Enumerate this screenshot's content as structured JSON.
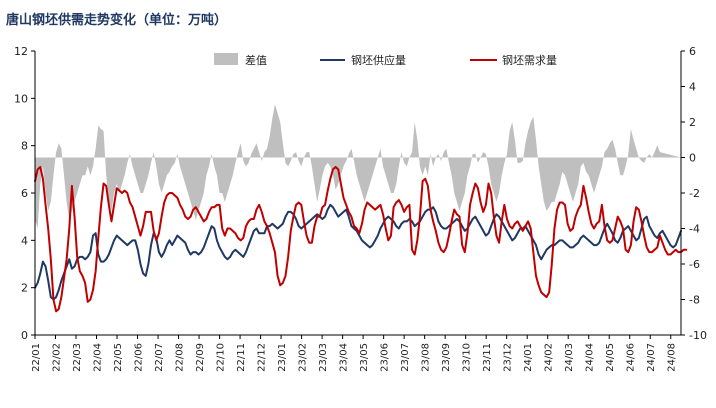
{
  "chart_data": {
    "type": "line",
    "title": "唐山钢坯供需走势变化（单位：万吨）",
    "left_axis": {
      "range": [
        0,
        12
      ],
      "ticks": [
        "0",
        "2",
        "4",
        "6",
        "8",
        "10",
        "12"
      ]
    },
    "right_axis": {
      "range": [
        -10,
        6
      ],
      "ticks": [
        "-10",
        "-8",
        "-6",
        "-4",
        "-2",
        "0",
        "2",
        "4",
        "6"
      ]
    },
    "x_tick_labels": [
      "22/01",
      "22/02",
      "22/03",
      "22/04",
      "22/05",
      "22/06",
      "22/07",
      "22/08",
      "22/09",
      "22/10",
      "22/11",
      "22/12",
      "23/01",
      "23/02",
      "23/03",
      "23/04",
      "23/05",
      "23/06",
      "23/07",
      "23/08",
      "23/09",
      "23/10",
      "23/11",
      "23/12",
      "24/01",
      "24/02",
      "24/03",
      "24/04",
      "24/05",
      "24/06",
      "24/07",
      "24/08"
    ],
    "legend_position": "top",
    "series": [
      {
        "name": "差值",
        "type": "area",
        "axis": "right",
        "color": "#bfbfbf",
        "values": [
          -3.5,
          -4.0,
          -1.5,
          -0.5,
          -2.0,
          -3.0,
          -2.5,
          -1.0,
          0.3,
          0.8,
          0.5,
          -1.0,
          -2.5,
          -3.5,
          -3.0,
          -2.5,
          -2.0,
          -1.5,
          -1.0,
          -1.0,
          -0.5,
          -1.0,
          -0.5,
          0.5,
          1.8,
          1.6,
          1.5,
          -1.0,
          -2.5,
          -3.0,
          -2.0,
          -1.5,
          -2.0,
          -1.5,
          -1.0,
          -0.3,
          0.2,
          -0.5,
          -1.0,
          -1.5,
          -2.0,
          -2.0,
          -1.5,
          -1.0,
          -0.3,
          0.3,
          -0.5,
          -1.5,
          -2.0,
          -1.5,
          -1.0,
          -0.8,
          -0.5,
          -0.3,
          0.2,
          -0.5,
          -1.0,
          -1.5,
          -2.0,
          -2.5,
          -3.0,
          -3.5,
          -3.0,
          -2.5,
          -2.0,
          -1.0,
          -0.5,
          0.2,
          -0.5,
          -1.0,
          -2.0,
          -2.0,
          -2.5,
          -2.0,
          -1.5,
          -1.0,
          -0.3,
          0.3,
          0.8,
          -0.2,
          -0.5,
          -0.3,
          0.2,
          0.5,
          0.8,
          0.3,
          -0.2,
          0.3,
          0.5,
          1.2,
          2.2,
          3.0,
          2.5,
          2.0,
          0.8,
          -0.3,
          -0.5,
          -0.2,
          0.2,
          0.3,
          -0.2,
          -0.5,
          0.0,
          0.3,
          0.3,
          -0.5,
          -1.5,
          -2.5,
          -1.8,
          -1.0,
          -0.5,
          -0.3,
          -0.5,
          -1.0,
          -1.8,
          -1.5,
          -1.0,
          -0.5,
          -0.2,
          0.2,
          0.5,
          -0.2,
          -1.0,
          -1.5,
          -2.0,
          -2.5,
          -2.0,
          -1.5,
          -1.0,
          -0.5,
          0.0,
          0.5,
          -0.5,
          -1.0,
          -1.5,
          -2.0,
          -2.0,
          -1.5,
          -0.5,
          0.3,
          -0.3,
          -0.5,
          0.0,
          0.3,
          2.0,
          1.0,
          -0.5,
          -1.0,
          -0.5,
          -1.0,
          0.2,
          -0.5,
          0.0,
          0.2,
          -0.2,
          0.3,
          0.5,
          -0.3,
          -1.0,
          -2.0,
          -2.5,
          -3.0,
          -2.5,
          -2.0,
          -1.0,
          -0.5,
          0.2,
          0.2,
          -0.3,
          0.0,
          0.3,
          0.2,
          -0.5,
          -1.5,
          -2.0,
          -2.5,
          -2.0,
          -1.0,
          -0.3,
          0.2,
          1.5,
          2.0,
          1.0,
          -0.3,
          -0.3,
          -0.2,
          0.8,
          1.5,
          2.0,
          2.3,
          1.0,
          -0.5,
          -1.5,
          -2.5,
          -3.0,
          -2.8,
          -2.5,
          -2.5,
          -2.0,
          -1.5,
          -0.8,
          -1.0,
          -1.5,
          -2.0,
          -2.5,
          -2.0,
          -1.5,
          -0.5,
          -0.3,
          -0.8,
          -1.0,
          -1.5,
          -2.0,
          -1.5,
          -1.0,
          -0.5,
          0.3,
          0.5,
          0.8,
          1.0,
          0.5,
          -0.3,
          -1.0,
          -1.0,
          -0.5,
          0.2,
          1.6,
          1.0,
          0.5,
          0.0,
          -0.2,
          -0.3,
          0.0,
          0.2,
          0.0,
          0.3,
          0.7,
          0.3
        ]
      },
      {
        "name": "钢坯供应量",
        "type": "line",
        "axis": "left",
        "color": "#1f3864",
        "values": [
          2.0,
          2.2,
          2.6,
          3.1,
          2.9,
          2.3,
          1.6,
          1.5,
          1.6,
          1.9,
          2.3,
          2.6,
          2.9,
          3.2,
          2.8,
          2.9,
          3.2,
          3.3,
          3.3,
          3.2,
          3.3,
          3.5,
          4.2,
          4.3,
          3.4,
          3.1,
          3.1,
          3.2,
          3.4,
          3.7,
          4.0,
          4.2,
          4.1,
          4.0,
          3.9,
          3.8,
          3.9,
          4.0,
          4.0,
          3.6,
          3.0,
          2.6,
          2.5,
          3.0,
          3.8,
          4.3,
          4.1,
          3.5,
          3.3,
          3.5,
          3.8,
          4.0,
          3.8,
          4.0,
          4.2,
          4.1,
          4.0,
          3.9,
          3.6,
          3.4,
          3.5,
          3.5,
          3.4,
          3.5,
          3.7,
          4.0,
          4.3,
          4.6,
          4.5,
          4.0,
          3.7,
          3.5,
          3.3,
          3.2,
          3.3,
          3.5,
          3.6,
          3.5,
          3.4,
          3.3,
          3.5,
          3.8,
          4.1,
          4.4,
          4.5,
          4.3,
          4.3,
          4.3,
          4.6,
          4.6,
          4.7,
          4.6,
          4.5,
          4.6,
          4.7,
          5.0,
          5.2,
          5.2,
          5.1,
          4.9,
          4.6,
          4.5,
          4.6,
          4.7,
          4.8,
          4.9,
          5.0,
          5.1,
          5.0,
          4.9,
          5.0,
          5.3,
          5.5,
          5.4,
          5.2,
          5.0,
          5.1,
          5.2,
          5.3,
          5.0,
          4.6,
          4.5,
          4.4,
          4.2,
          4.0,
          3.9,
          3.8,
          3.7,
          3.8,
          4.0,
          4.2,
          4.5,
          4.7,
          4.9,
          5.0,
          4.9,
          4.8,
          4.6,
          4.5,
          4.7,
          4.8,
          4.8,
          4.9,
          4.8,
          4.6,
          4.7,
          4.8,
          5.0,
          5.2,
          5.3,
          5.3,
          5.4,
          5.2,
          4.8,
          4.6,
          4.5,
          4.5,
          4.6,
          4.7,
          4.8,
          4.9,
          4.8,
          4.6,
          4.4,
          4.5,
          4.7,
          4.9,
          5.0,
          4.8,
          4.6,
          4.4,
          4.2,
          4.3,
          4.6,
          4.9,
          5.1,
          5.0,
          4.8,
          4.6,
          4.4,
          4.2,
          4.0,
          4.1,
          4.3,
          4.5,
          4.5,
          4.6,
          4.4,
          4.2,
          4.0,
          3.8,
          3.4,
          3.2,
          3.4,
          3.6,
          3.7,
          3.8,
          3.8,
          3.9,
          4.0,
          4.0,
          3.9,
          3.8,
          3.7,
          3.7,
          3.8,
          3.9,
          4.1,
          4.2,
          4.1,
          4.0,
          3.9,
          3.8,
          3.8,
          3.9,
          4.2,
          4.5,
          4.7,
          4.5,
          4.3,
          4.0,
          3.9,
          4.1,
          4.4,
          4.5,
          4.6,
          4.4,
          4.2,
          4.0,
          4.1,
          4.5,
          4.9,
          5.0,
          4.6,
          4.4,
          4.2,
          4.1,
          4.3,
          4.4,
          4.2,
          4.0,
          3.8,
          3.7,
          3.8,
          4.1,
          4.4
        ]
      },
      {
        "name": "钢坯需求量",
        "type": "line",
        "axis": "left",
        "color": "#c00000",
        "values": [
          6.5,
          7.0,
          7.1,
          6.6,
          5.5,
          4.5,
          3.2,
          1.5,
          1.0,
          1.1,
          1.6,
          2.4,
          3.2,
          4.5,
          6.3,
          5.0,
          3.3,
          2.7,
          2.5,
          2.2,
          1.4,
          1.5,
          1.9,
          2.7,
          4.1,
          5.4,
          6.4,
          6.3,
          5.5,
          4.8,
          5.5,
          6.2,
          6.1,
          6.0,
          6.1,
          6.0,
          5.6,
          5.4,
          5.0,
          4.6,
          4.2,
          4.6,
          5.2,
          5.2,
          5.2,
          4.4,
          4.0,
          4.3,
          5.0,
          5.6,
          5.9,
          6.0,
          6.0,
          5.9,
          5.8,
          5.5,
          5.3,
          5.0,
          4.9,
          5.0,
          5.3,
          5.4,
          5.2,
          5.0,
          4.8,
          4.9,
          5.2,
          5.4,
          5.4,
          5.5,
          5.5,
          4.5,
          4.2,
          4.5,
          4.5,
          4.4,
          4.3,
          4.1,
          4.0,
          4.1,
          4.6,
          4.8,
          4.9,
          4.9,
          5.3,
          5.5,
          5.2,
          4.8,
          4.6,
          4.3,
          3.9,
          3.5,
          2.5,
          2.1,
          2.2,
          2.5,
          3.3,
          4.4,
          5.0,
          5.5,
          5.6,
          5.5,
          4.8,
          4.2,
          3.9,
          3.9,
          4.6,
          5.0,
          5.0,
          5.4,
          5.5,
          6.1,
          6.6,
          7.0,
          7.1,
          7.0,
          6.4,
          5.8,
          5.5,
          5.2,
          5.0,
          4.6,
          4.5,
          4.3,
          4.7,
          5.3,
          5.6,
          5.5,
          5.4,
          5.3,
          5.4,
          5.5,
          5.1,
          4.5,
          4.0,
          4.2,
          5.4,
          5.6,
          5.7,
          5.5,
          5.2,
          5.4,
          5.5,
          3.6,
          3.4,
          4.0,
          5.0,
          6.5,
          6.6,
          6.3,
          5.3,
          4.8,
          4.4,
          3.9,
          3.6,
          3.5,
          3.7,
          4.2,
          4.8,
          5.3,
          5.1,
          5.0,
          3.8,
          3.5,
          4.3,
          5.5,
          6.0,
          6.4,
          6.2,
          5.6,
          5.2,
          5.5,
          6.4,
          6.0,
          5.0,
          4.2,
          3.9,
          4.8,
          5.5,
          4.9,
          4.6,
          4.5,
          4.7,
          4.8,
          4.6,
          4.4,
          4.6,
          4.8,
          4.5,
          3.5,
          2.5,
          2.1,
          1.8,
          1.7,
          1.6,
          1.8,
          3.0,
          4.5,
          5.3,
          5.6,
          5.6,
          5.5,
          4.7,
          4.4,
          4.5,
          5.0,
          5.3,
          5.5,
          6.3,
          5.8,
          5.2,
          4.7,
          4.5,
          4.7,
          4.8,
          5.5,
          4.6,
          4.0,
          3.9,
          4.0,
          4.5,
          5.0,
          4.8,
          4.5,
          3.6,
          3.5,
          3.8,
          4.8,
          5.4,
          5.3,
          4.8,
          4.2,
          3.7,
          3.5,
          3.5,
          3.6,
          3.7,
          4.2,
          3.9,
          3.6,
          3.4,
          3.4,
          3.5,
          3.6,
          3.5,
          3.5,
          3.6,
          3.6
        ]
      }
    ]
  }
}
